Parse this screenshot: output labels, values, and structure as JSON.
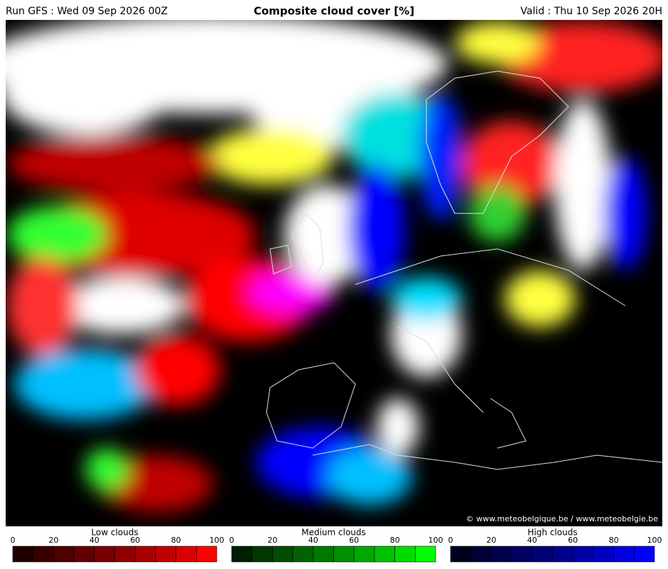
{
  "header": {
    "run": "Run GFS : Wed 09 Sep 2026 00Z",
    "title": "Composite cloud cover [%]",
    "valid": "Valid : Thu 10 Sep 2026 20H"
  },
  "credit": "© www.meteobelgique.be / www.meteobelgie.be",
  "legends": [
    {
      "title": "Low clouds",
      "ticks": [
        0,
        20,
        40,
        60,
        80,
        100
      ],
      "colors": [
        "#1e0000",
        "#360000",
        "#4c0000",
        "#620000",
        "#780000",
        "#900000",
        "#a80000",
        "#c00000",
        "#dc0000",
        "#ff0000"
      ]
    },
    {
      "title": "Medium clouds",
      "ticks": [
        0,
        20,
        40,
        60,
        80,
        100
      ],
      "colors": [
        "#001e00",
        "#003600",
        "#004c00",
        "#006200",
        "#007800",
        "#009000",
        "#00a800",
        "#00c000",
        "#00dc00",
        "#00ff00"
      ]
    },
    {
      "title": "High clouds",
      "ticks": [
        0,
        20,
        40,
        60,
        80,
        100
      ],
      "colors": [
        "#00001e",
        "#000036",
        "#00004c",
        "#000062",
        "#000078",
        "#000090",
        "#0000a8",
        "#0000c0",
        "#0000dc",
        "#0000ff"
      ]
    }
  ]
}
